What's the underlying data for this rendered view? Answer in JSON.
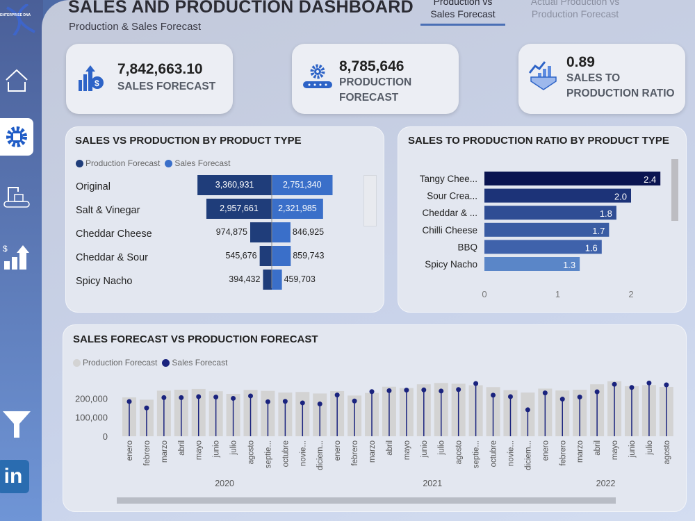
{
  "header": {
    "title": "SALES AND PRODUCTION DASHBOARD",
    "subtitle": "Production & Sales Forecast",
    "tabs": [
      {
        "label": "Production vs Sales Forecast",
        "active": true
      },
      {
        "label": "Actual Production vs Production Forecast",
        "active": false
      }
    ]
  },
  "sidebar": {
    "logo": "ENTERPRISE DNA",
    "items": [
      {
        "icon": "home-icon"
      },
      {
        "icon": "gear-icon",
        "active": true
      },
      {
        "icon": "robot-arm-conveyor-icon"
      },
      {
        "icon": "sales-growth-chart-icon"
      },
      {
        "icon": "filter-icon"
      },
      {
        "icon": "linkedin-icon"
      }
    ]
  },
  "kpis": [
    {
      "value": "7,842,663.10",
      "label": "SALES FORECAST",
      "icon": "money-growth-icon"
    },
    {
      "value": "8,785,646",
      "label": "PRODUCTION FORECAST",
      "icon": "gear-conveyor-icon"
    },
    {
      "value": "0.89",
      "label": "SALES TO PRODUCTION RATIO",
      "icon": "hand-chart-icon"
    }
  ],
  "colors": {
    "production": "#1f3d7a",
    "sales": "#3a6fc9",
    "ratio_bars": [
      "#0a1450",
      "#1c3378",
      "#2f4d94",
      "#3a5ca3",
      "#3f62ab",
      "#5a86c8"
    ],
    "lollipop": "#1a237e",
    "bars_gray": "#d3d3d3"
  },
  "chart_data": [
    {
      "type": "bar",
      "title": "SALES VS PRODUCTION BY PRODUCT TYPE",
      "orientation": "horizontal-diverging",
      "legend": [
        "Production Forecast",
        "Sales Forecast"
      ],
      "legend_position": "top-left",
      "categories": [
        "Original",
        "Salt & Vinegar",
        "Cheddar Cheese",
        "Cheddar & Sour",
        "Spicy Nacho"
      ],
      "series": [
        {
          "name": "Production Forecast",
          "values": [
            3360931,
            2957661,
            974875,
            545676,
            394432
          ],
          "labels": [
            "3,360,931",
            "2,957,661",
            "974,875",
            "545,676",
            "394,432"
          ]
        },
        {
          "name": "Sales Forecast",
          "values": [
            2751340,
            2321985,
            846925,
            859743,
            459703
          ],
          "labels": [
            "2,751,340",
            "2,321,985",
            "846,925",
            "859,743",
            "459,703"
          ]
        }
      ]
    },
    {
      "type": "bar",
      "title": "SALES TO PRODUCTION RATIO BY PRODUCT TYPE",
      "orientation": "horizontal",
      "categories": [
        "Tangy Chee...",
        "Sour Crea...",
        "Cheddar & ...",
        "Chilli Cheese",
        "BBQ",
        "Spicy Nacho"
      ],
      "values": [
        2.4,
        2.0,
        1.8,
        1.7,
        1.6,
        1.3
      ],
      "labels": [
        "2.4",
        "2.0",
        "1.8",
        "1.7",
        "1.6",
        "1.3"
      ],
      "xticks": [
        "0",
        "1",
        "2"
      ],
      "xlim": [
        0,
        2.6
      ]
    },
    {
      "type": "bar",
      "title": "SALES FORECAST VS PRODUCTION FORECAST",
      "legend": [
        "Production Forecast",
        "Sales Forecast"
      ],
      "legend_position": "top-left",
      "yticks": [
        "0",
        "100,000",
        "200,000"
      ],
      "ylim": [
        0,
        300000
      ],
      "months": [
        "enero",
        "febrero",
        "marzo",
        "abril",
        "mayo",
        "junio",
        "julio",
        "agosto",
        "septie...",
        "octubre",
        "novie...",
        "diciem...",
        "enero",
        "febrero",
        "marzo",
        "abril",
        "mayo",
        "junio",
        "julio",
        "agosto",
        "septie...",
        "octubre",
        "novie...",
        "diciem...",
        "enero",
        "febrero",
        "marzo",
        "abril",
        "mayo",
        "junio",
        "julio",
        "agosto"
      ],
      "years": [
        {
          "label": "2020",
          "months": 12
        },
        {
          "label": "2021",
          "months": 12
        },
        {
          "label": "2022",
          "months": 8
        }
      ],
      "series": [
        {
          "name": "Production Forecast",
          "type": "bar",
          "values": [
            207000,
            195000,
            243000,
            248000,
            252000,
            240000,
            226000,
            247000,
            242000,
            233000,
            236000,
            228000,
            241000,
            217000,
            231000,
            264000,
            257000,
            277000,
            284000,
            280000,
            272000,
            262000,
            246000,
            233000,
            254000,
            244000,
            248000,
            277000,
            293000,
            267000,
            273000,
            263000
          ]
        },
        {
          "name": "Sales Forecast",
          "type": "lollipop",
          "values": [
            185000,
            151000,
            206000,
            206000,
            211000,
            209000,
            202000,
            215000,
            184000,
            186000,
            178000,
            172000,
            220000,
            188000,
            238000,
            243000,
            246000,
            247000,
            241000,
            249000,
            281000,
            219000,
            211000,
            141000,
            231000,
            198000,
            209000,
            237000,
            277000,
            260000,
            284000,
            274000
          ]
        }
      ]
    }
  ]
}
